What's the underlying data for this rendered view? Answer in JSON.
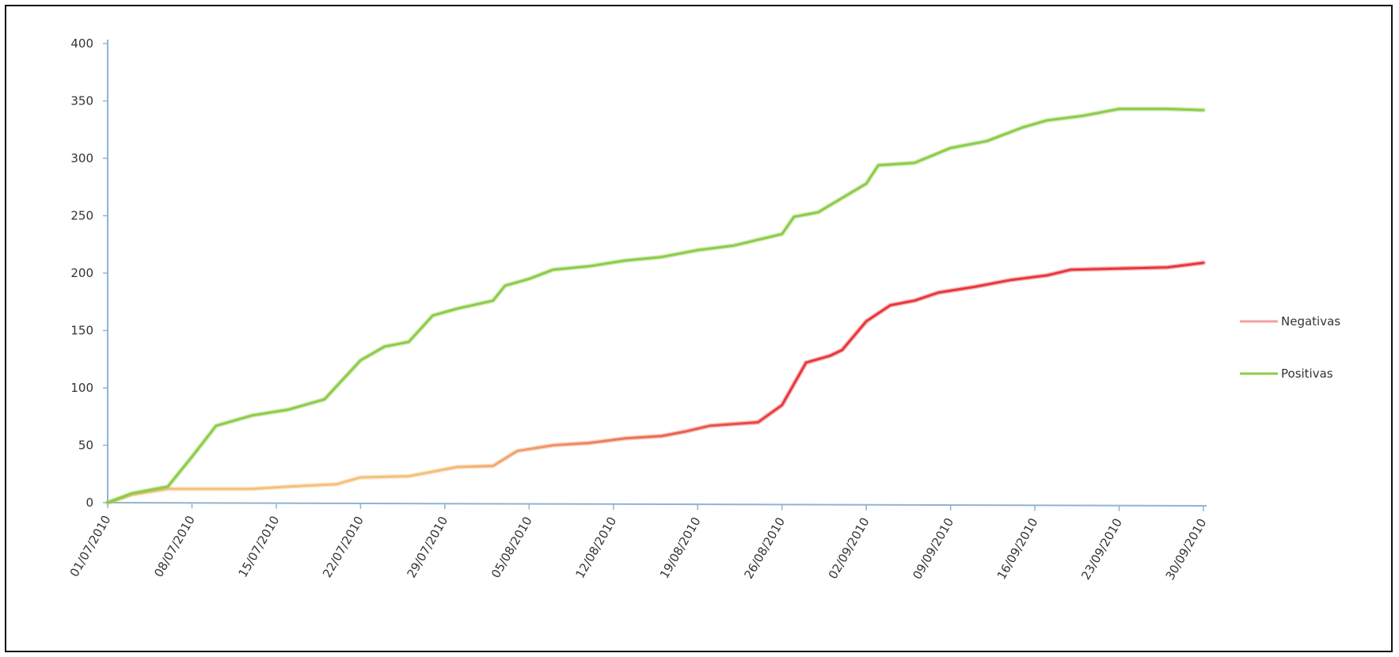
{
  "chart_data": {
    "type": "line",
    "title": "",
    "xlabel": "",
    "ylabel": "",
    "ylim": [
      0,
      400
    ],
    "y_ticks": [
      "0",
      "50",
      "100",
      "150",
      "200",
      "250",
      "300",
      "350",
      "400"
    ],
    "x_range": [
      "01/07/2010",
      "30/09/2010"
    ],
    "x_ticks": [
      "01/07/2010",
      "08/07/2010",
      "15/07/2010",
      "22/07/2010",
      "29/07/2010",
      "05/08/2010",
      "12/08/2010",
      "19/08/2010",
      "26/08/2010",
      "02/09/2010",
      "09/09/2010",
      "16/09/2010",
      "23/09/2010",
      "30/09/2010"
    ],
    "grid": false,
    "legend_position": "right",
    "series": [
      {
        "name": "Negativas",
        "color_start": "#f5c07a",
        "color_end": "#e8373d",
        "points": [
          [
            "01/07/2010",
            0
          ],
          [
            "03/07/2010",
            7
          ],
          [
            "06/07/2010",
            12
          ],
          [
            "10/07/2010",
            12
          ],
          [
            "13/07/2010",
            12
          ],
          [
            "16/07/2010",
            14
          ],
          [
            "20/07/2010",
            16
          ],
          [
            "22/07/2010",
            22
          ],
          [
            "26/07/2010",
            23
          ],
          [
            "28/07/2010",
            27
          ],
          [
            "30/07/2010",
            31
          ],
          [
            "02/08/2010",
            32
          ],
          [
            "04/08/2010",
            45
          ],
          [
            "07/08/2010",
            50
          ],
          [
            "10/08/2010",
            52
          ],
          [
            "13/08/2010",
            56
          ],
          [
            "16/08/2010",
            58
          ],
          [
            "18/08/2010",
            62
          ],
          [
            "20/08/2010",
            67
          ],
          [
            "24/08/2010",
            70
          ],
          [
            "26/08/2010",
            85
          ],
          [
            "28/08/2010",
            122
          ],
          [
            "30/08/2010",
            128
          ],
          [
            "31/08/2010",
            133
          ],
          [
            "02/09/2010",
            158
          ],
          [
            "04/09/2010",
            172
          ],
          [
            "06/09/2010",
            176
          ],
          [
            "08/09/2010",
            183
          ],
          [
            "11/09/2010",
            188
          ],
          [
            "14/09/2010",
            194
          ],
          [
            "17/09/2010",
            198
          ],
          [
            "19/09/2010",
            203
          ],
          [
            "23/09/2010",
            204
          ],
          [
            "27/09/2010",
            205
          ],
          [
            "30/09/2010",
            209
          ]
        ]
      },
      {
        "name": "Positivas",
        "color_start": "#8ccc48",
        "color_end": "#8ccc48",
        "points": [
          [
            "01/07/2010",
            0
          ],
          [
            "03/07/2010",
            8
          ],
          [
            "06/07/2010",
            14
          ],
          [
            "08/07/2010",
            40
          ],
          [
            "10/07/2010",
            67
          ],
          [
            "13/07/2010",
            76
          ],
          [
            "16/07/2010",
            81
          ],
          [
            "19/07/2010",
            90
          ],
          [
            "22/07/2010",
            124
          ],
          [
            "24/07/2010",
            136
          ],
          [
            "26/07/2010",
            140
          ],
          [
            "28/07/2010",
            163
          ],
          [
            "30/07/2010",
            169
          ],
          [
            "02/08/2010",
            176
          ],
          [
            "03/08/2010",
            189
          ],
          [
            "05/08/2010",
            195
          ],
          [
            "07/08/2010",
            203
          ],
          [
            "10/08/2010",
            206
          ],
          [
            "13/08/2010",
            211
          ],
          [
            "16/08/2010",
            214
          ],
          [
            "19/08/2010",
            220
          ],
          [
            "22/08/2010",
            224
          ],
          [
            "24/08/2010",
            229
          ],
          [
            "26/08/2010",
            234
          ],
          [
            "27/08/2010",
            249
          ],
          [
            "29/08/2010",
            253
          ],
          [
            "02/09/2010",
            278
          ],
          [
            "03/09/2010",
            294
          ],
          [
            "06/09/2010",
            296
          ],
          [
            "09/09/2010",
            309
          ],
          [
            "12/09/2010",
            315
          ],
          [
            "15/09/2010",
            327
          ],
          [
            "17/09/2010",
            333
          ],
          [
            "20/09/2010",
            337
          ],
          [
            "23/09/2010",
            343
          ],
          [
            "27/09/2010",
            343
          ],
          [
            "30/09/2010",
            342
          ]
        ]
      }
    ]
  }
}
